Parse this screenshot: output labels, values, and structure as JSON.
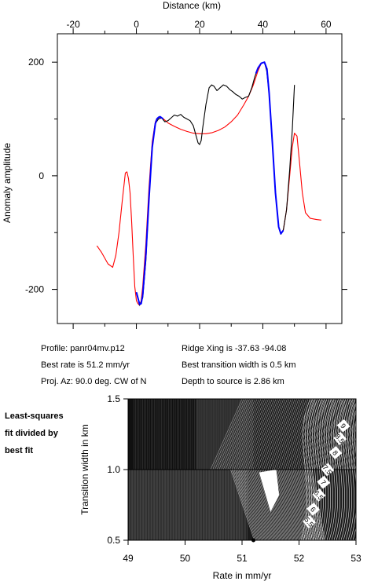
{
  "profile_info": {
    "profile": "Profile: panr04mv.p12",
    "rate": "Best rate is 51.2 mm/yr",
    "azimuth": "Proj. Az: 90.0 deg. CW of N",
    "ridge": "Ridge Xing is -37.63 -94.08",
    "width": "Best transition width is 0.5 km",
    "depth": "Depth to source is   2.86 km"
  },
  "side_label": [
    "Least-squares",
    "fit divided by",
    "best fit"
  ],
  "colors": {
    "observed": "#000000",
    "model": "#ff0000",
    "fit": "#0000ff"
  },
  "chart_data": [
    {
      "type": "line",
      "xlabel": "Distance (km)",
      "ylabel": "Anomaly amplitude",
      "xlim": [
        -25,
        65
      ],
      "ylim": [
        -260,
        250
      ],
      "xticks": [
        -20,
        0,
        20,
        40,
        60
      ],
      "yticks": [
        -200,
        0,
        200
      ],
      "x_axis_position": "top",
      "series": [
        {
          "role": "model",
          "color": "#ff0000",
          "x": [
            -12.5,
            -11,
            -9,
            -7.5,
            -6.5,
            -5.5,
            -4.5,
            -3.5,
            -3,
            -2.5,
            -2,
            -1.5,
            -1,
            -0.5,
            0,
            0.5,
            1,
            1.5,
            2,
            3,
            4,
            5,
            6,
            6.5,
            7,
            7.5,
            8,
            9,
            10,
            12,
            14,
            16,
            18,
            20,
            22,
            24,
            26,
            28,
            30,
            32,
            34,
            35.5,
            37,
            38.5,
            39.5,
            40.5,
            41.3,
            42,
            43,
            44,
            45,
            45.7,
            46.5,
            47.5,
            48.5,
            49.3,
            50,
            50.8,
            51.5,
            52.5,
            53.5,
            55,
            57,
            58.5
          ],
          "values": [
            -123,
            -135,
            -155,
            -161,
            -140,
            -100,
            -45,
            5,
            7,
            -5,
            -30,
            -80,
            -140,
            -195,
            -220,
            -225,
            -228,
            -220,
            -195,
            -120,
            -20,
            60,
            95,
            101,
            102,
            103,
            102,
            98,
            93,
            87,
            82,
            78,
            75,
            74,
            74,
            76,
            80,
            86,
            95,
            107,
            125,
            140,
            160,
            185,
            198,
            200,
            185,
            145,
            60,
            -30,
            -90,
            -102,
            -95,
            -60,
            0,
            50,
            75,
            70,
            30,
            -30,
            -65,
            -75,
            -77,
            -78
          ]
        },
        {
          "role": "observed",
          "color": "#000000",
          "x": [
            0,
            1,
            2,
            3,
            4,
            5,
            6,
            7,
            8,
            9,
            10,
            11,
            12,
            13,
            14,
            15,
            16,
            17,
            18,
            18.8,
            19.5,
            20,
            20.5,
            21,
            22,
            23,
            23.8,
            24.5,
            25.5,
            26.5,
            27.5,
            28.5,
            29.5,
            30.5,
            31.5,
            32.5,
            33.5,
            34.5,
            35.5,
            36.5,
            37.5,
            38.5,
            39.5,
            40.5,
            41.2,
            42,
            43,
            44,
            45,
            45.7,
            46.5,
            47.5,
            48.5,
            49.3,
            50
          ],
          "values": [
            -205,
            -228,
            -215,
            -150,
            -40,
            50,
            92,
            100,
            102,
            95,
            97,
            102,
            107,
            105,
            108,
            103,
            100,
            97,
            88,
            72,
            58,
            55,
            62,
            85,
            125,
            155,
            160,
            158,
            150,
            155,
            160,
            158,
            152,
            148,
            143,
            140,
            135,
            138,
            140,
            155,
            175,
            190,
            198,
            200,
            185,
            145,
            60,
            -30,
            -90,
            -103,
            -95,
            -60,
            10,
            80,
            160
          ]
        },
        {
          "role": "fit",
          "color": "#0000ff",
          "x": [
            0,
            1,
            1.5,
            2,
            3,
            4,
            5,
            6,
            6.5,
            7,
            7.5,
            8,
            8.5
          ],
          "values": [
            -205,
            -226,
            -225,
            -210,
            -140,
            -40,
            50,
            92,
            100,
            103,
            104,
            102,
            100
          ]
        },
        {
          "role": "fit",
          "color": "#0000ff",
          "x": [
            37.8,
            38.5,
            39.5,
            40.5,
            41.3,
            42,
            43,
            44,
            45,
            45.7,
            46.5
          ],
          "values": [
            180,
            190,
            198,
            200,
            188,
            145,
            60,
            -30,
            -90,
            -102,
            -96
          ]
        }
      ]
    },
    {
      "type": "heatmap",
      "xlabel": "Rate in mm/yr",
      "ylabel": "Transition width in km",
      "xlim": [
        49,
        53
      ],
      "ylim": [
        0.5,
        1.5
      ],
      "xticks": [
        "49",
        "50",
        "51",
        "52",
        "53"
      ],
      "yticks": [
        "0.5",
        "1.0",
        "1.5"
      ],
      "contour_labels": [
        "9",
        "8.5",
        "8",
        "7.5",
        "7",
        "6.5",
        "6",
        "5.5"
      ],
      "best_fit": {
        "x": 51.2,
        "y": 0.5
      }
    }
  ]
}
